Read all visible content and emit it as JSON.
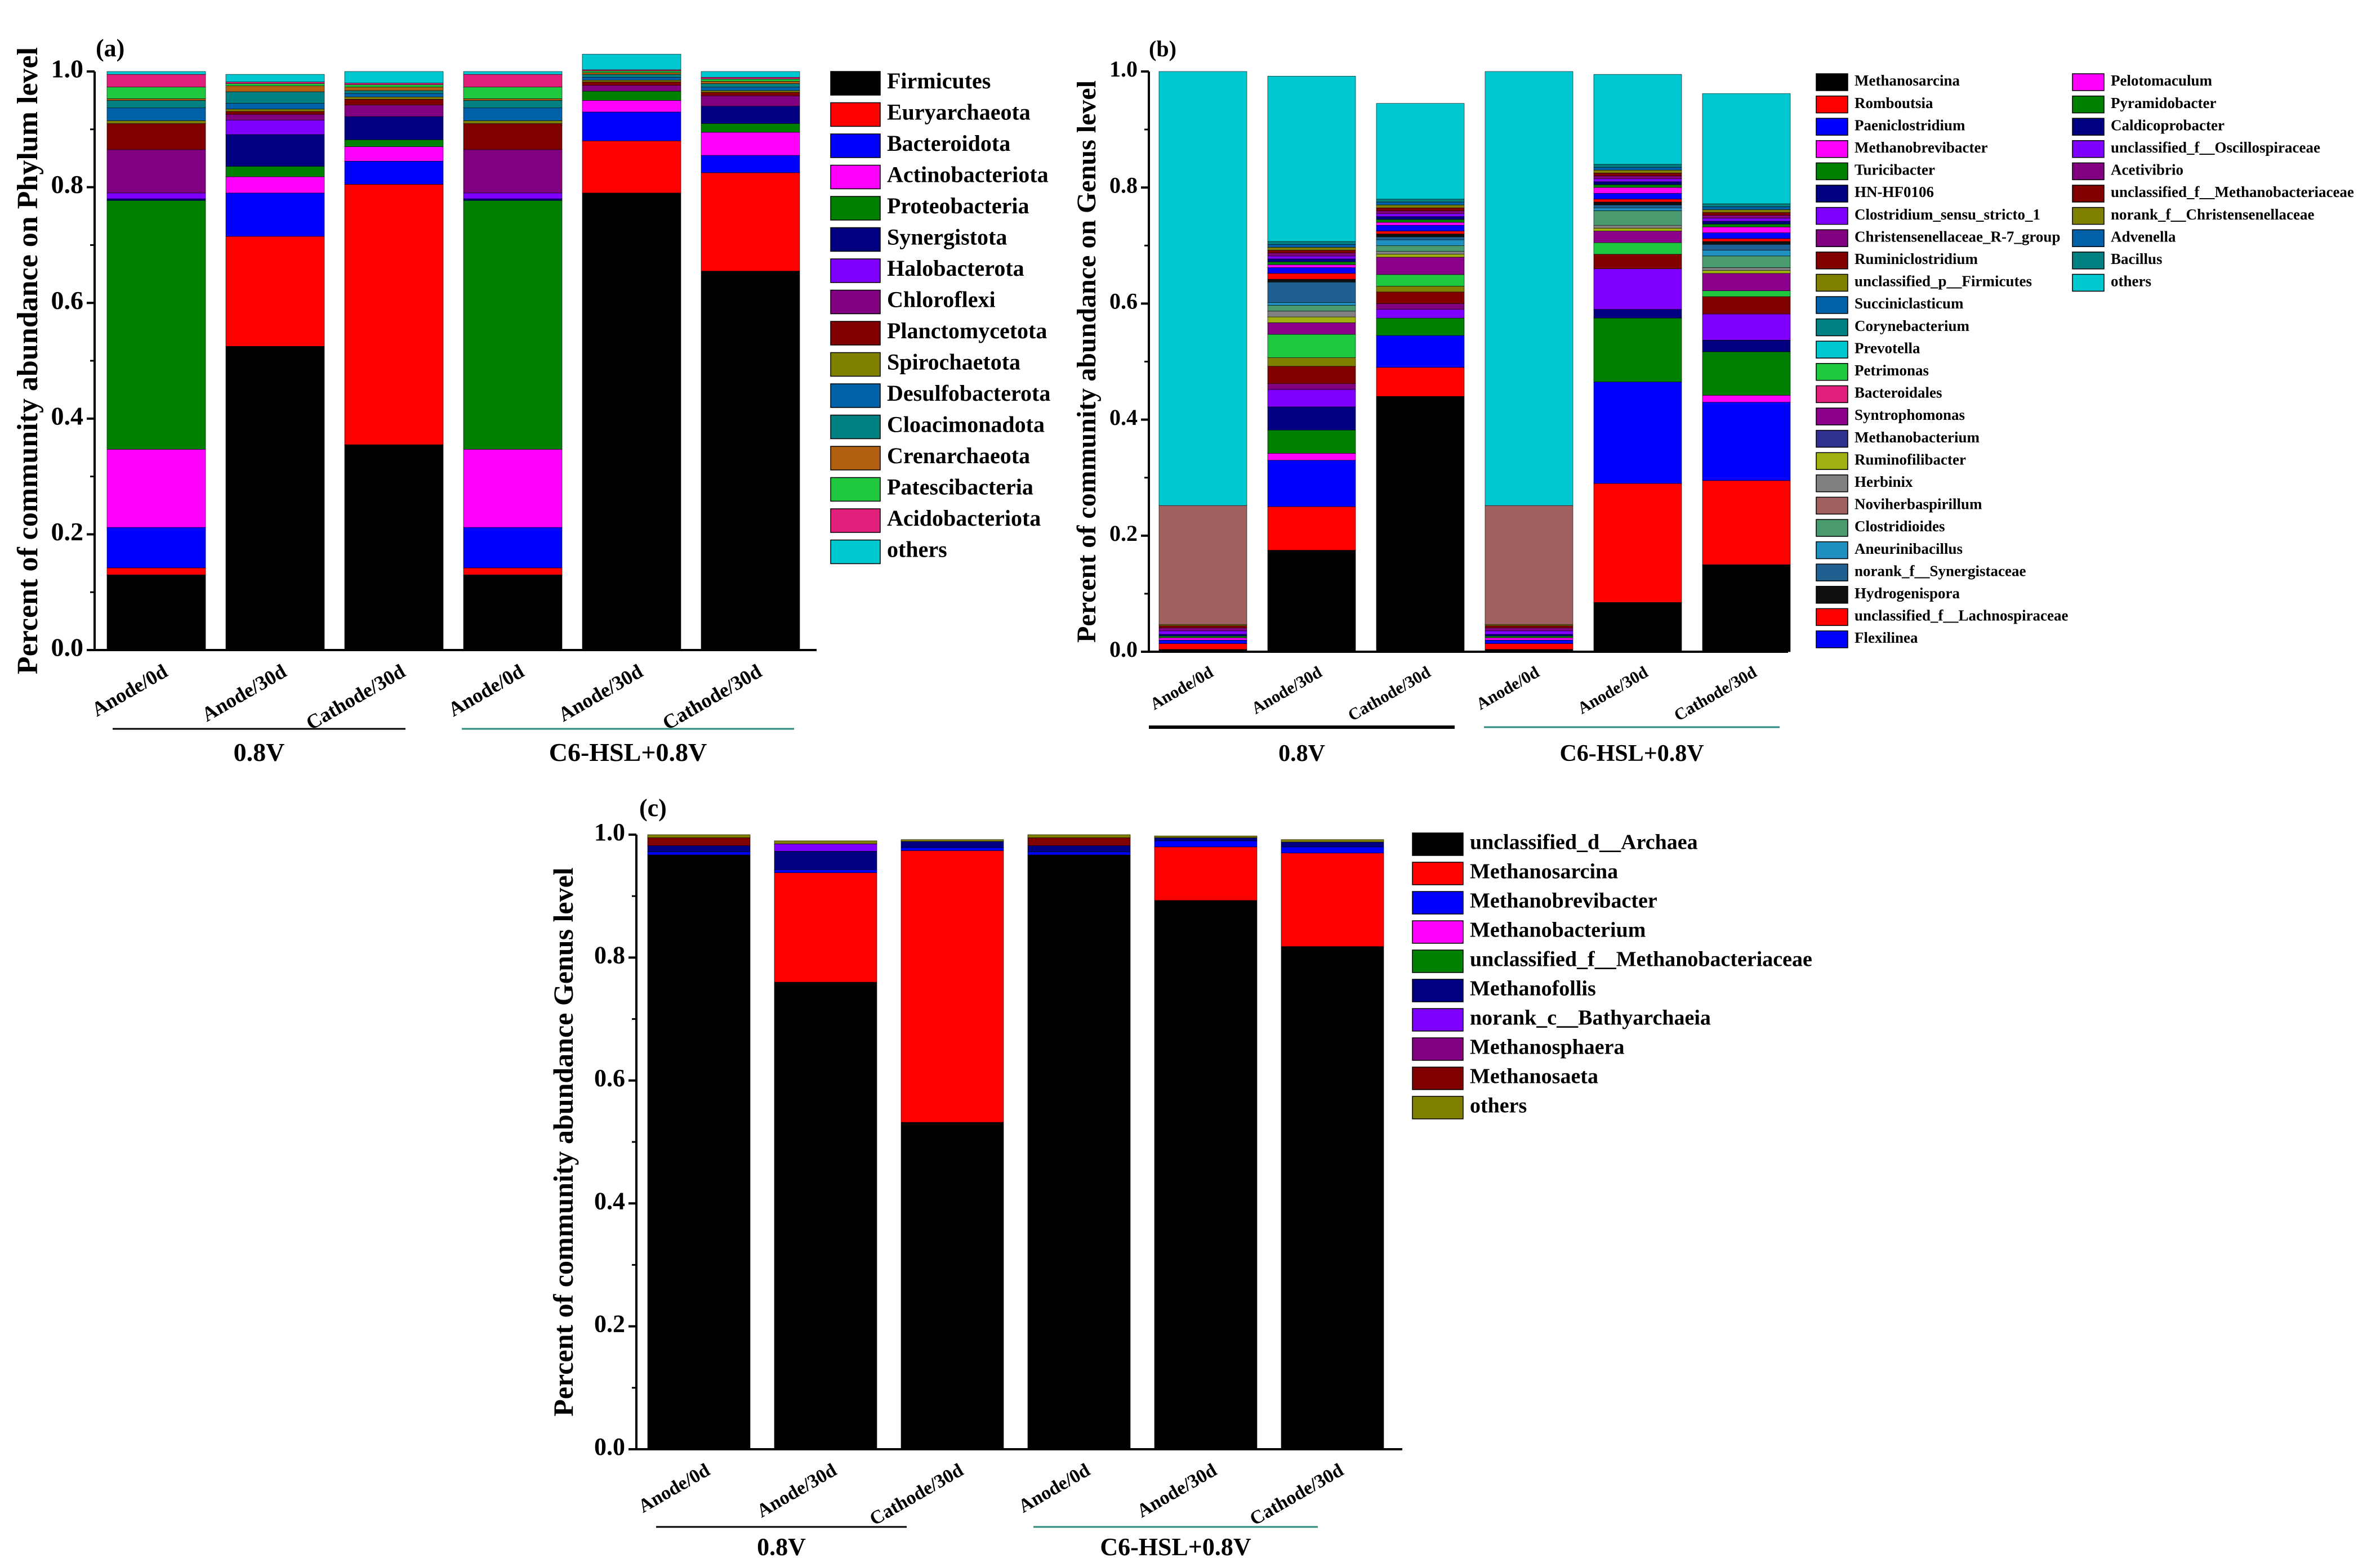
{
  "figure": {
    "group_labels": [
      "0.8V",
      "C6-HSL+0.8V"
    ],
    "group_line_colors": [
      "#000000",
      "#2a8a7e"
    ]
  },
  "chart_data": [
    {
      "panel": "(a)",
      "type": "stacked-bar",
      "ylabel": "Percent of community abundance on Phylum level",
      "ylim": [
        0,
        1.0
      ],
      "yticks": [
        "0.0",
        "0.2",
        "0.4",
        "0.6",
        "0.8",
        "1.0"
      ],
      "categories": [
        "Anode/0d",
        "Anode/30d",
        "Cathode/30d",
        "Anode/0d",
        "Anode/30d",
        "Cathode/30d"
      ],
      "series": [
        {
          "name": "Firmicutes",
          "color": "#000000",
          "values": [
            0.13,
            0.525,
            0.355,
            0.13,
            0.79,
            0.655
          ]
        },
        {
          "name": "Euryarchaeota",
          "color": "#ff0000",
          "values": [
            0.012,
            0.19,
            0.45,
            0.012,
            0.09,
            0.17
          ]
        },
        {
          "name": "Bacteroidota",
          "color": "#0000ff",
          "values": [
            0.07,
            0.075,
            0.04,
            0.07,
            0.05,
            0.03
          ]
        },
        {
          "name": "Actinobacteriota",
          "color": "#ff00ff",
          "values": [
            0.135,
            0.028,
            0.025,
            0.135,
            0.02,
            0.04
          ]
        },
        {
          "name": "Proteobacteria",
          "color": "#008000",
          "values": [
            0.43,
            0.018,
            0.012,
            0.43,
            0.016,
            0.015
          ]
        },
        {
          "name": "Synergistota",
          "color": "#000080",
          "values": [
            0.003,
            0.055,
            0.04,
            0.003,
            0.0,
            0.03
          ]
        },
        {
          "name": "Halobacterota",
          "color": "#8000ff",
          "values": [
            0.01,
            0.025,
            0.0,
            0.01,
            0.0,
            0.0
          ]
        },
        {
          "name": "Chloroflexi",
          "color": "#800080",
          "values": [
            0.075,
            0.01,
            0.02,
            0.075,
            0.01,
            0.018
          ]
        },
        {
          "name": "Planctomycetota",
          "color": "#800000",
          "values": [
            0.045,
            0.005,
            0.01,
            0.045,
            0.006,
            0.006
          ]
        },
        {
          "name": "Spirochaetota",
          "color": "#808000",
          "values": [
            0.005,
            0.004,
            0.004,
            0.005,
            0.003,
            0.003
          ]
        },
        {
          "name": "Desulfobacterota",
          "color": "#0060a8",
          "values": [
            0.022,
            0.01,
            0.006,
            0.022,
            0.005,
            0.006
          ]
        },
        {
          "name": "Cloacimonadota",
          "color": "#008080",
          "values": [
            0.013,
            0.02,
            0.005,
            0.013,
            0.005,
            0.006
          ]
        },
        {
          "name": "Crenarchaeota",
          "color": "#b06010",
          "values": [
            0.003,
            0.01,
            0.006,
            0.003,
            0.003,
            0.004
          ]
        },
        {
          "name": "Patescibacteria",
          "color": "#20c840",
          "values": [
            0.02,
            0.004,
            0.004,
            0.02,
            0.003,
            0.004
          ]
        },
        {
          "name": "Acidobacteriota",
          "color": "#e0207a",
          "values": [
            0.022,
            0.003,
            0.003,
            0.022,
            0.002,
            0.003
          ]
        },
        {
          "name": "others",
          "color": "#00c8d0",
          "values": [
            0.005,
            0.013,
            0.02,
            0.005,
            0.027,
            0.01
          ]
        }
      ]
    },
    {
      "panel": "(b)",
      "type": "stacked-bar",
      "ylabel": "Percent of community abundance on Genus level",
      "ylim": [
        0,
        1.0
      ],
      "yticks": [
        "0.0",
        "0.2",
        "0.4",
        "0.6",
        "0.8",
        "1.0"
      ],
      "categories": [
        "Anode/0d",
        "Anode/30d",
        "Cathode/30d",
        "Anode/0d",
        "Anode/30d",
        "Cathode/30d"
      ],
      "series": [
        {
          "name": "Methanosarcina",
          "color": "#000000",
          "values": [
            0.004,
            0.175,
            0.44,
            0.004,
            0.085,
            0.15
          ]
        },
        {
          "name": "Romboutsia",
          "color": "#ff0000",
          "values": [
            0.01,
            0.075,
            0.05,
            0.01,
            0.205,
            0.145
          ]
        },
        {
          "name": "Paeniclostridium",
          "color": "#0000ff",
          "values": [
            0.006,
            0.08,
            0.055,
            0.006,
            0.175,
            0.135
          ]
        },
        {
          "name": "Methanobrevibacter",
          "color": "#ff00ff",
          "values": [
            0.004,
            0.012,
            0.0,
            0.004,
            0.0,
            0.012
          ]
        },
        {
          "name": "Turicibacter",
          "color": "#008000",
          "values": [
            0.003,
            0.04,
            0.03,
            0.003,
            0.11,
            0.075
          ]
        },
        {
          "name": "HN-HF0106",
          "color": "#000080",
          "values": [
            0.003,
            0.04,
            0.0,
            0.003,
            0.015,
            0.02
          ]
        },
        {
          "name": "Clostridium_sensu_stricto_1",
          "color": "#8000ff",
          "values": [
            0.006,
            0.03,
            0.015,
            0.006,
            0.07,
            0.045
          ]
        },
        {
          "name": "Christensenellaceae_R-7_group",
          "color": "#800080",
          "values": [
            0.005,
            0.01,
            0.01,
            0.005,
            0.0,
            0.0
          ]
        },
        {
          "name": "Ruminiclostridium",
          "color": "#800000",
          "values": [
            0.004,
            0.03,
            0.02,
            0.004,
            0.025,
            0.03
          ]
        },
        {
          "name": "unclassified_p__Firmicutes",
          "color": "#808000",
          "values": [
            0.002,
            0.015,
            0.01,
            0.002,
            0.0,
            0.0
          ]
        },
        {
          "name": "Succiniclasticum",
          "color": "#0060a8",
          "values": [
            0.0,
            0.0,
            0.0,
            0.0,
            0.0,
            0.0
          ]
        },
        {
          "name": "Corynebacterium",
          "color": "#008080",
          "values": [
            0.0,
            0.0,
            0.0,
            0.0,
            0.0,
            0.0
          ]
        },
        {
          "name": "Prevotella",
          "color": "#00c8d0",
          "values": [
            0.0,
            0.0,
            0.0,
            0.0,
            0.0,
            0.0
          ]
        },
        {
          "name": "Petrimonas",
          "color": "#20c840",
          "values": [
            0.0,
            0.04,
            0.02,
            0.0,
            0.02,
            0.01
          ]
        },
        {
          "name": "Bacteroidales",
          "color": "#e0207a",
          "values": [
            0.0,
            0.0,
            0.0,
            0.0,
            0.0,
            0.0
          ]
        },
        {
          "name": "Syntrophomonas",
          "color": "#8b008b",
          "values": [
            0.0,
            0.02,
            0.03,
            0.0,
            0.02,
            0.03
          ]
        },
        {
          "name": "Methanobacterium",
          "color": "#303090",
          "values": [
            0.0,
            0.0,
            0.0,
            0.0,
            0.0,
            0.0
          ]
        },
        {
          "name": "Ruminofilibacter",
          "color": "#a0b010",
          "values": [
            0.0,
            0.01,
            0.005,
            0.0,
            0.005,
            0.005
          ]
        },
        {
          "name": "Herbinix",
          "color": "#808080",
          "values": [
            0.0,
            0.01,
            0.005,
            0.0,
            0.005,
            0.005
          ]
        },
        {
          "name": "Noviherbaspirillum",
          "color": "#a06060",
          "values": [
            0.205,
            0.0,
            0.0,
            0.205,
            0.0,
            0.0
          ]
        },
        {
          "name": "Clostridioides",
          "color": "#4a9a70",
          "values": [
            0.0,
            0.01,
            0.01,
            0.0,
            0.025,
            0.02
          ]
        },
        {
          "name": "Aneurinibacillus",
          "color": "#2090c0",
          "values": [
            0.0,
            0.005,
            0.01,
            0.0,
            0.005,
            0.01
          ]
        },
        {
          "name": "norank_f__Synergistaceae",
          "color": "#206090",
          "values": [
            0.0,
            0.035,
            0.005,
            0.0,
            0.005,
            0.01
          ]
        },
        {
          "name": "Hydrogenispora",
          "color": "#101010",
          "values": [
            0.0,
            0.005,
            0.005,
            0.0,
            0.005,
            0.005
          ]
        },
        {
          "name": "unclassified_f__Lachnospiraceae",
          "color": "#ff0000",
          "values": [
            0.0,
            0.01,
            0.005,
            0.0,
            0.005,
            0.005
          ]
        },
        {
          "name": "Flexilinea",
          "color": "#0000ff",
          "values": [
            0.0,
            0.01,
            0.01,
            0.0,
            0.01,
            0.01
          ]
        },
        {
          "name": "Pelotomaculum",
          "color": "#ff00ff",
          "values": [
            0.0,
            0.005,
            0.005,
            0.0,
            0.01,
            0.01
          ]
        },
        {
          "name": "Pyramidobacter",
          "color": "#008000",
          "values": [
            0.0,
            0.005,
            0.005,
            0.0,
            0.005,
            0.005
          ]
        },
        {
          "name": "Caldicoprobacter",
          "color": "#000080",
          "values": [
            0.0,
            0.005,
            0.005,
            0.0,
            0.005,
            0.005
          ]
        },
        {
          "name": "unclassified_f__Oscillospiraceae",
          "color": "#8000ff",
          "values": [
            0.0,
            0.005,
            0.005,
            0.0,
            0.005,
            0.005
          ]
        },
        {
          "name": "Acetivibrio",
          "color": "#800080",
          "values": [
            0.0,
            0.005,
            0.005,
            0.0,
            0.005,
            0.005
          ]
        },
        {
          "name": "unclassified_f__Methanobacteriaceae",
          "color": "#800000",
          "values": [
            0.0,
            0.005,
            0.005,
            0.0,
            0.005,
            0.005
          ]
        },
        {
          "name": "norank_f__Christensenellaceae",
          "color": "#808000",
          "values": [
            0.0,
            0.005,
            0.005,
            0.0,
            0.005,
            0.005
          ]
        },
        {
          "name": "Advenella",
          "color": "#0060a8",
          "values": [
            0.0,
            0.005,
            0.005,
            0.0,
            0.005,
            0.005
          ]
        },
        {
          "name": "Bacillus",
          "color": "#008080",
          "values": [
            0.0,
            0.005,
            0.005,
            0.0,
            0.005,
            0.005
          ]
        },
        {
          "name": "others",
          "color": "#00c8d0",
          "values": [
            0.748,
            0.285,
            0.165,
            0.748,
            0.155,
            0.19
          ]
        }
      ]
    },
    {
      "panel": "(c)",
      "type": "stacked-bar",
      "ylabel": "Percent of community abundance Genus level",
      "ylim": [
        0,
        1.0
      ],
      "yticks": [
        "0.0",
        "0.2",
        "0.4",
        "0.6",
        "0.8",
        "1.0"
      ],
      "categories": [
        "Anode/0d",
        "Anode/30d",
        "Cathode/30d",
        "Anode/0d",
        "Anode/30d",
        "Cathode/30d"
      ],
      "series": [
        {
          "name": "unclassified_d__Archaea",
          "color": "#000000",
          "values": [
            0.967,
            0.76,
            0.532,
            0.967,
            0.893,
            0.818
          ]
        },
        {
          "name": "Methanosarcina",
          "color": "#ff0000",
          "values": [
            0.0,
            0.178,
            0.442,
            0.0,
            0.087,
            0.152
          ]
        },
        {
          "name": "Methanobrevibacter",
          "color": "#0000ff",
          "values": [
            0.005,
            0.005,
            0.005,
            0.005,
            0.01,
            0.01
          ]
        },
        {
          "name": "Methanobacterium",
          "color": "#ff00ff",
          "values": [
            0.0,
            0.0,
            0.0,
            0.0,
            0.0,
            0.0
          ]
        },
        {
          "name": "unclassified_f__Methanobacteriaceae",
          "color": "#008000",
          "values": [
            0.0,
            0.0,
            0.0,
            0.0,
            0.0,
            0.0
          ]
        },
        {
          "name": "Methanofollis",
          "color": "#000080",
          "values": [
            0.01,
            0.03,
            0.01,
            0.01,
            0.005,
            0.008
          ]
        },
        {
          "name": "norank_c__Bathyarchaeia",
          "color": "#8000ff",
          "values": [
            0.0,
            0.012,
            0.0,
            0.0,
            0.0,
            0.0
          ]
        },
        {
          "name": "Methanosphaera",
          "color": "#800080",
          "values": [
            0.0,
            0.0,
            0.0,
            0.0,
            0.0,
            0.0
          ]
        },
        {
          "name": "Methanosaeta",
          "color": "#800000",
          "values": [
            0.013,
            0.0,
            0.0,
            0.013,
            0.0,
            0.0
          ]
        },
        {
          "name": "others",
          "color": "#808000",
          "values": [
            0.005,
            0.005,
            0.003,
            0.005,
            0.003,
            0.004
          ]
        }
      ]
    }
  ]
}
